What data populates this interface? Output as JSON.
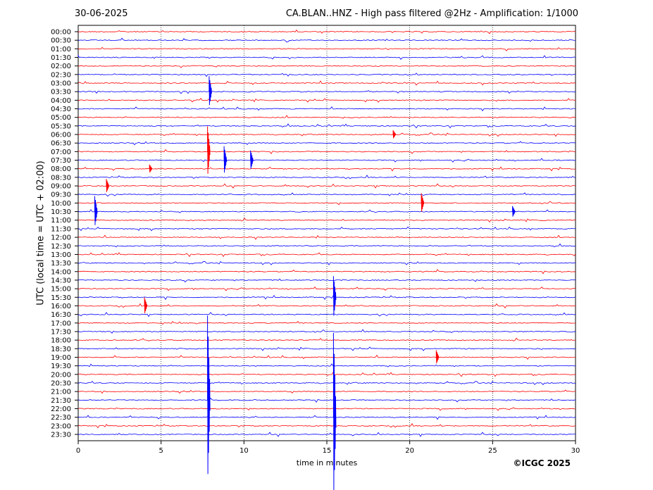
{
  "header": {
    "date": "30-06-2025",
    "title": "CA.BLAN..HNZ - High pass filtered @2Hz - Amplification: 1/1000"
  },
  "footer": {
    "copyright": "©ICGC 2025"
  },
  "colors": {
    "red": "#ff0000",
    "blue": "#0000ff",
    "axis": "#000000"
  },
  "chart_data": {
    "type": "line",
    "xlabel": "time in minutes",
    "ylabel": "UTC (local time = UTC + 02:00)",
    "xlim": [
      0,
      30
    ],
    "x_ticks": [
      "0",
      "5",
      "10",
      "15",
      "20",
      "25",
      "30"
    ],
    "gridlines_x": [
      5,
      10,
      15,
      20,
      25
    ],
    "row_labels": [
      "00:00",
      "00:30",
      "01:00",
      "01:30",
      "02:00",
      "02:30",
      "03:00",
      "03:30",
      "04:00",
      "04:30",
      "05:00",
      "05:30",
      "06:00",
      "06:30",
      "07:00",
      "07:30",
      "08:00",
      "08:30",
      "09:00",
      "09:30",
      "10:00",
      "10:30",
      "11:00",
      "11:30",
      "12:00",
      "12:30",
      "13:00",
      "13:30",
      "14:00",
      "14:30",
      "15:00",
      "15:30",
      "16:00",
      "16:30",
      "17:00",
      "17:30",
      "18:00",
      "18:30",
      "19:00",
      "19:30",
      "20:00",
      "20:30",
      "21:00",
      "21:30",
      "22:00",
      "22:30",
      "23:00",
      "23:30"
    ],
    "row_colors": [
      "red",
      "blue"
    ],
    "events": [
      {
        "row": 7,
        "minute": 7.9,
        "amplitude": 22
      },
      {
        "row": 14,
        "minute": 7.8,
        "amplitude": 36
      },
      {
        "row": 15,
        "minute": 8.8,
        "amplitude": 20
      },
      {
        "row": 15,
        "minute": 10.4,
        "amplitude": 14
      },
      {
        "row": 16,
        "minute": 4.3,
        "amplitude": 6
      },
      {
        "row": 18,
        "minute": 1.7,
        "amplitude": 10
      },
      {
        "row": 20,
        "minute": 20.7,
        "amplitude": 14
      },
      {
        "row": 21,
        "minute": 1.0,
        "amplitude": 22
      },
      {
        "row": 21,
        "minute": 26.2,
        "amplitude": 8
      },
      {
        "row": 31,
        "minute": 15.4,
        "amplitude": 30
      },
      {
        "row": 32,
        "minute": 4.0,
        "amplitude": 12
      },
      {
        "row": 38,
        "minute": 21.6,
        "amplitude": 10
      },
      {
        "row": 43,
        "minute": 7.8,
        "amplitude": 120
      },
      {
        "row": 45,
        "minute": 15.4,
        "amplitude": 120
      },
      {
        "row": 12,
        "minute": 19.0,
        "amplitude": 6
      }
    ]
  }
}
